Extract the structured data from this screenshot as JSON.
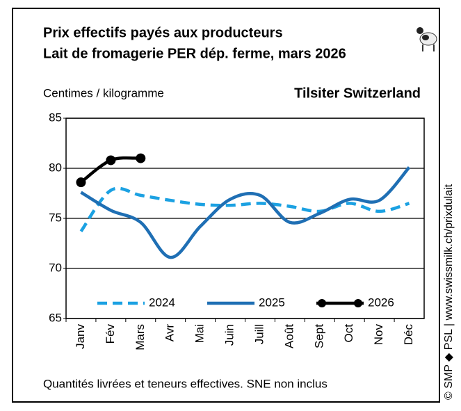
{
  "chart_data": {
    "type": "line",
    "title": [
      "Prix effectifs payés aux producteurs",
      "Lait de fromagerie PER dép. ferme, mars 2026"
    ],
    "y_axis_label": "Centimes / kilogramme",
    "subtitle": "Tilsiter Switzerland",
    "footnote": "Quantités livrées et teneurs effectives. SNE non inclus",
    "source": "© SMP ◆ PSL | www.swissmilk.ch/prixdulait",
    "categories": [
      "Janv",
      "Fév",
      "Mars",
      "Avr",
      "Mai",
      "Juin",
      "Juill",
      "Août",
      "Sept",
      "Oct",
      "Nov",
      "Déc"
    ],
    "series": [
      {
        "name": "2024",
        "color": "#1ba1e2",
        "dash": true,
        "markers": false,
        "values": [
          73.7,
          77.8,
          77.3,
          76.8,
          76.4,
          76.3,
          76.5,
          76.2,
          75.7,
          76.5,
          75.7,
          76.5
        ]
      },
      {
        "name": "2025",
        "color": "#1f6fb4",
        "dash": false,
        "markers": false,
        "values": [
          77.6,
          75.8,
          74.6,
          71.1,
          74.2,
          76.9,
          77.3,
          74.6,
          75.5,
          76.9,
          76.8,
          80.1
        ]
      },
      {
        "name": "2026",
        "color": "#000000",
        "dash": false,
        "markers": true,
        "values": [
          78.6,
          80.8,
          81.0,
          null,
          null,
          null,
          null,
          null,
          null,
          null,
          null,
          null
        ]
      }
    ],
    "ylim": [
      65,
      85
    ],
    "yticks": [
      65,
      70,
      75,
      80,
      85
    ],
    "grid": true,
    "legend": "bottom"
  }
}
